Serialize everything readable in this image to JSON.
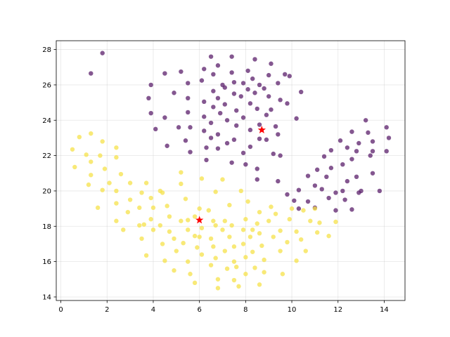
{
  "chart_data": {
    "type": "scatter",
    "title": "",
    "xlabel": "",
    "ylabel": "",
    "xlim": [
      -0.2,
      14.9
    ],
    "ylim": [
      13.8,
      28.5
    ],
    "xticks": [
      0,
      2,
      4,
      6,
      8,
      10,
      12,
      14
    ],
    "yticks": [
      14,
      16,
      18,
      20,
      22,
      24,
      26,
      28
    ],
    "grid": true,
    "legend": "none",
    "series": [
      {
        "color": "#5b1f6b",
        "opacity": 0.75,
        "points": [
          [
            1.3,
            26.65
          ],
          [
            1.8,
            27.8
          ],
          [
            3.8,
            25.25
          ],
          [
            3.9,
            26.0
          ],
          [
            3.9,
            24.4
          ],
          [
            4.1,
            23.5
          ],
          [
            4.5,
            26.65
          ],
          [
            4.5,
            24.15
          ],
          [
            4.6,
            22.55
          ],
          [
            4.9,
            25.55
          ],
          [
            5.2,
            26.75
          ],
          [
            5.1,
            23.6
          ],
          [
            5.4,
            22.85
          ],
          [
            5.5,
            26.1
          ],
          [
            5.5,
            25.25
          ],
          [
            5.5,
            24.45
          ],
          [
            5.6,
            23.6
          ],
          [
            5.6,
            22.2
          ],
          [
            6.1,
            26.25
          ],
          [
            6.2,
            25.05
          ],
          [
            6.2,
            24.2
          ],
          [
            6.2,
            23.4
          ],
          [
            6.3,
            22.45
          ],
          [
            6.3,
            21.75
          ],
          [
            6.2,
            26.9
          ],
          [
            6.5,
            27.6
          ],
          [
            6.6,
            26.6
          ],
          [
            6.6,
            25.65
          ],
          [
            6.6,
            24.75
          ],
          [
            6.5,
            23.85
          ],
          [
            6.5,
            23.0
          ],
          [
            6.8,
            27.1
          ],
          [
            6.8,
            25.25
          ],
          [
            6.9,
            24.4
          ],
          [
            6.8,
            23.2
          ],
          [
            6.8,
            22.4
          ],
          [
            7.0,
            26.0
          ],
          [
            7.1,
            25.85
          ],
          [
            7.1,
            24.9
          ],
          [
            7.2,
            24.0
          ],
          [
            7.2,
            22.7
          ],
          [
            7.4,
            21.6
          ],
          [
            7.4,
            26.7
          ],
          [
            7.5,
            26.15
          ],
          [
            7.5,
            25.5
          ],
          [
            7.6,
            24.55
          ],
          [
            7.6,
            23.7
          ],
          [
            7.5,
            22.9
          ],
          [
            7.4,
            27.6
          ],
          [
            7.9,
            26.1
          ],
          [
            7.8,
            25.35
          ],
          [
            7.9,
            24.15
          ],
          [
            7.9,
            22.15
          ],
          [
            8.0,
            21.5
          ],
          [
            8.1,
            26.8
          ],
          [
            8.1,
            25.75
          ],
          [
            8.2,
            24.95
          ],
          [
            8.2,
            23.45
          ],
          [
            8.2,
            22.5
          ],
          [
            8.5,
            21.25
          ],
          [
            8.3,
            26.35
          ],
          [
            8.4,
            25.55
          ],
          [
            8.5,
            24.65
          ],
          [
            8.6,
            23.75
          ],
          [
            8.6,
            22.95
          ],
          [
            8.8,
            25.8
          ],
          [
            8.9,
            24.3
          ],
          [
            8.9,
            22.9
          ],
          [
            8.4,
            27.45
          ],
          [
            8.6,
            26.0
          ],
          [
            9.1,
            27.2
          ],
          [
            9.0,
            26.55
          ],
          [
            9.0,
            25.35
          ],
          [
            9.1,
            24.6
          ],
          [
            9.3,
            23.65
          ],
          [
            9.2,
            22.1
          ],
          [
            9.4,
            26.1
          ],
          [
            9.5,
            25.15
          ],
          [
            9.4,
            23.2
          ],
          [
            9.5,
            22.0
          ],
          [
            9.7,
            26.6
          ],
          [
            9.8,
            24.95
          ],
          [
            9.9,
            26.5
          ],
          [
            10.4,
            25.6
          ],
          [
            10.2,
            24.1
          ],
          [
            9.4,
            20.55
          ],
          [
            8.5,
            20.65
          ],
          [
            9.8,
            19.8
          ],
          [
            10.1,
            19.45
          ],
          [
            10.3,
            20.05
          ],
          [
            10.3,
            19.0
          ],
          [
            10.7,
            20.85
          ],
          [
            11.0,
            20.3
          ],
          [
            11.0,
            19.05
          ],
          [
            11.1,
            21.2
          ],
          [
            11.3,
            20.1
          ],
          [
            11.4,
            21.95
          ],
          [
            11.5,
            20.8
          ],
          [
            11.6,
            19.6
          ],
          [
            11.7,
            22.3
          ],
          [
            11.7,
            21.3
          ],
          [
            11.9,
            18.9
          ],
          [
            11.9,
            19.9
          ],
          [
            12.1,
            22.85
          ],
          [
            12.2,
            21.5
          ],
          [
            12.3,
            19.5
          ],
          [
            12.4,
            22.45
          ],
          [
            12.4,
            20.55
          ],
          [
            12.6,
            23.35
          ],
          [
            12.6,
            21.8
          ],
          [
            12.6,
            18.95
          ],
          [
            12.8,
            22.25
          ],
          [
            12.8,
            20.8
          ],
          [
            12.9,
            19.9
          ],
          [
            12.9,
            22.7
          ],
          [
            13.2,
            24.0
          ],
          [
            13.3,
            23.3
          ],
          [
            13.4,
            22.0
          ],
          [
            13.5,
            22.8
          ],
          [
            13.5,
            21.0
          ],
          [
            13.5,
            22.25
          ],
          [
            13.8,
            20.0
          ],
          [
            14.1,
            23.6
          ],
          [
            14.1,
            22.25
          ],
          [
            14.2,
            23.0
          ],
          [
            13.0,
            20.0
          ],
          [
            12.2,
            20.0
          ],
          [
            10.7,
            19.4
          ]
        ]
      },
      {
        "color": "#f5e24a",
        "opacity": 0.75,
        "points": [
          [
            0.5,
            22.35
          ],
          [
            0.6,
            21.35
          ],
          [
            0.8,
            23.05
          ],
          [
            1.1,
            22.05
          ],
          [
            1.3,
            23.25
          ],
          [
            1.3,
            21.65
          ],
          [
            1.3,
            20.9
          ],
          [
            1.2,
            20.35
          ],
          [
            1.6,
            19.05
          ],
          [
            1.7,
            22.0
          ],
          [
            1.8,
            22.8
          ],
          [
            1.9,
            21.25
          ],
          [
            1.8,
            20.05
          ],
          [
            2.1,
            20.45
          ],
          [
            2.4,
            22.45
          ],
          [
            2.4,
            21.9
          ],
          [
            2.4,
            20.0
          ],
          [
            2.4,
            19.3
          ],
          [
            2.4,
            18.3
          ],
          [
            2.6,
            20.95
          ],
          [
            2.7,
            17.8
          ],
          [
            2.9,
            18.8
          ],
          [
            3.0,
            20.45
          ],
          [
            3.0,
            19.5
          ],
          [
            3.4,
            19.05
          ],
          [
            3.4,
            18.05
          ],
          [
            3.5,
            19.9
          ],
          [
            3.5,
            17.3
          ],
          [
            3.7,
            20.45
          ],
          [
            3.7,
            16.35
          ],
          [
            3.9,
            19.6
          ],
          [
            3.9,
            18.4
          ],
          [
            4.0,
            17.8
          ],
          [
            4.0,
            19.05
          ],
          [
            4.3,
            18.05
          ],
          [
            4.4,
            17.0
          ],
          [
            4.4,
            19.9
          ],
          [
            4.5,
            16.05
          ],
          [
            4.6,
            19.15
          ],
          [
            4.7,
            18.55
          ],
          [
            4.7,
            17.7
          ],
          [
            4.9,
            15.5
          ],
          [
            4.9,
            17.3
          ],
          [
            5.0,
            16.6
          ],
          [
            5.2,
            21.05
          ],
          [
            5.2,
            20.4
          ],
          [
            5.2,
            18.3
          ],
          [
            5.3,
            17.05
          ],
          [
            5.4,
            19.55
          ],
          [
            5.5,
            18.35
          ],
          [
            5.5,
            17.8
          ],
          [
            5.5,
            16.0
          ],
          [
            5.6,
            15.3
          ],
          [
            5.8,
            18.55
          ],
          [
            5.8,
            17.45
          ],
          [
            5.8,
            14.8
          ],
          [
            5.9,
            16.8
          ],
          [
            6.0,
            17.4
          ],
          [
            6.0,
            19.0
          ],
          [
            6.1,
            20.7
          ],
          [
            6.1,
            17.9
          ],
          [
            6.1,
            16.4
          ],
          [
            6.4,
            18.9
          ],
          [
            6.5,
            17.3
          ],
          [
            6.5,
            15.8
          ],
          [
            6.6,
            16.85
          ],
          [
            6.6,
            18.3
          ],
          [
            6.7,
            19.95
          ],
          [
            6.7,
            18.05
          ],
          [
            6.7,
            16.2
          ],
          [
            6.8,
            14.5
          ],
          [
            6.8,
            15.0
          ],
          [
            7.0,
            20.65
          ],
          [
            7.0,
            17.8
          ],
          [
            7.1,
            18.3
          ],
          [
            7.1,
            16.6
          ],
          [
            7.2,
            15.6
          ],
          [
            7.3,
            19.2
          ],
          [
            7.3,
            17.4
          ],
          [
            7.4,
            18.05
          ],
          [
            7.5,
            16.85
          ],
          [
            7.5,
            16.0
          ],
          [
            7.5,
            14.95
          ],
          [
            7.6,
            15.7
          ],
          [
            7.7,
            14.6
          ],
          [
            7.8,
            20.0
          ],
          [
            7.9,
            17.8
          ],
          [
            7.9,
            17.0
          ],
          [
            8.0,
            18.4
          ],
          [
            8.0,
            16.25
          ],
          [
            8.0,
            15.3
          ],
          [
            8.1,
            19.4
          ],
          [
            8.2,
            17.4
          ],
          [
            8.3,
            16.55
          ],
          [
            8.3,
            17.8
          ],
          [
            8.4,
            15.65
          ],
          [
            8.5,
            18.15
          ],
          [
            8.6,
            18.8
          ],
          [
            8.6,
            17.6
          ],
          [
            8.7,
            16.9
          ],
          [
            8.8,
            16.1
          ],
          [
            8.8,
            15.4
          ],
          [
            8.6,
            14.7
          ],
          [
            9.0,
            18.3
          ],
          [
            9.1,
            19.1
          ],
          [
            9.2,
            17.4
          ],
          [
            9.3,
            18.7
          ],
          [
            9.5,
            17.75
          ],
          [
            9.5,
            16.6
          ],
          [
            9.6,
            15.3
          ],
          [
            9.8,
            17.1
          ],
          [
            9.9,
            18.4
          ],
          [
            10.0,
            19.0
          ],
          [
            10.2,
            17.7
          ],
          [
            10.2,
            16.05
          ],
          [
            10.4,
            17.25
          ],
          [
            10.5,
            18.9
          ],
          [
            10.6,
            16.6
          ],
          [
            10.8,
            18.3
          ],
          [
            11.0,
            19.0
          ],
          [
            11.1,
            17.65
          ],
          [
            11.2,
            18.2
          ],
          [
            11.6,
            17.45
          ],
          [
            11.9,
            18.25
          ],
          [
            3.6,
            18.1
          ],
          [
            4.3,
            20.0
          ]
        ]
      }
    ],
    "centroids": {
      "color": "#ff0000",
      "points": [
        [
          8.7,
          23.45
        ],
        [
          6.0,
          18.35
        ]
      ]
    }
  }
}
